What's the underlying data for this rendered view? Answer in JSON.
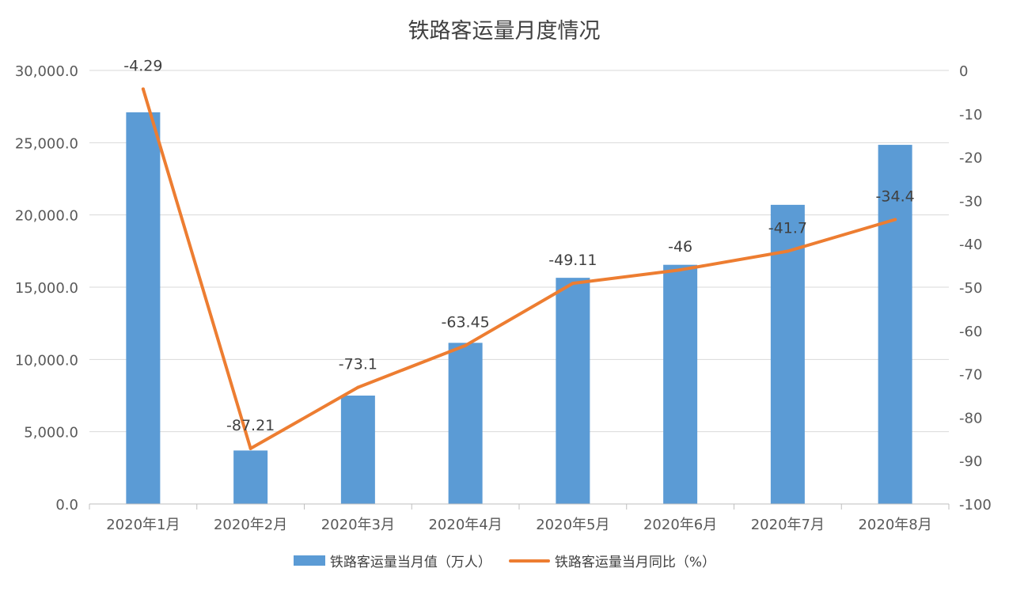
{
  "chart_data": {
    "type": "bar+line",
    "title": "铁路客运量月度情况",
    "categories": [
      "2020年1月",
      "2020年2月",
      "2020年3月",
      "2020年4月",
      "2020年5月",
      "2020年6月",
      "2020年7月",
      "2020年8月"
    ],
    "series": [
      {
        "name": "铁路客运量当月值（万人）",
        "type": "bar",
        "axis": "left",
        "color": "#5b9bd5",
        "values": [
          27100,
          3700,
          7500,
          11150,
          15650,
          16550,
          20700,
          24850
        ]
      },
      {
        "name": "铁路客运量当月同比（%）",
        "type": "line",
        "axis": "right",
        "color": "#ed7d31",
        "values": [
          -4.29,
          -87.21,
          -73.1,
          -63.45,
          -49.11,
          -46,
          -41.7,
          -34.4
        ],
        "labels": [
          "-4.29",
          "-87.21",
          "-73.1",
          "-63.45",
          "-49.11",
          "-46",
          "-41.7",
          "-34.4"
        ]
      }
    ],
    "y_left": {
      "range": [
        0,
        30000
      ],
      "ticks": [
        "0.0",
        "5,000.0",
        "10,000.0",
        "15,000.0",
        "20,000.0",
        "25,000.0",
        "30,000.0"
      ]
    },
    "y_right": {
      "range": [
        -100,
        0
      ],
      "ticks": [
        "0",
        "-10",
        "-20",
        "-30",
        "-40",
        "-50",
        "-60",
        "-70",
        "-80",
        "-90",
        "-100"
      ]
    },
    "grid": true,
    "legend_position": "bottom"
  }
}
